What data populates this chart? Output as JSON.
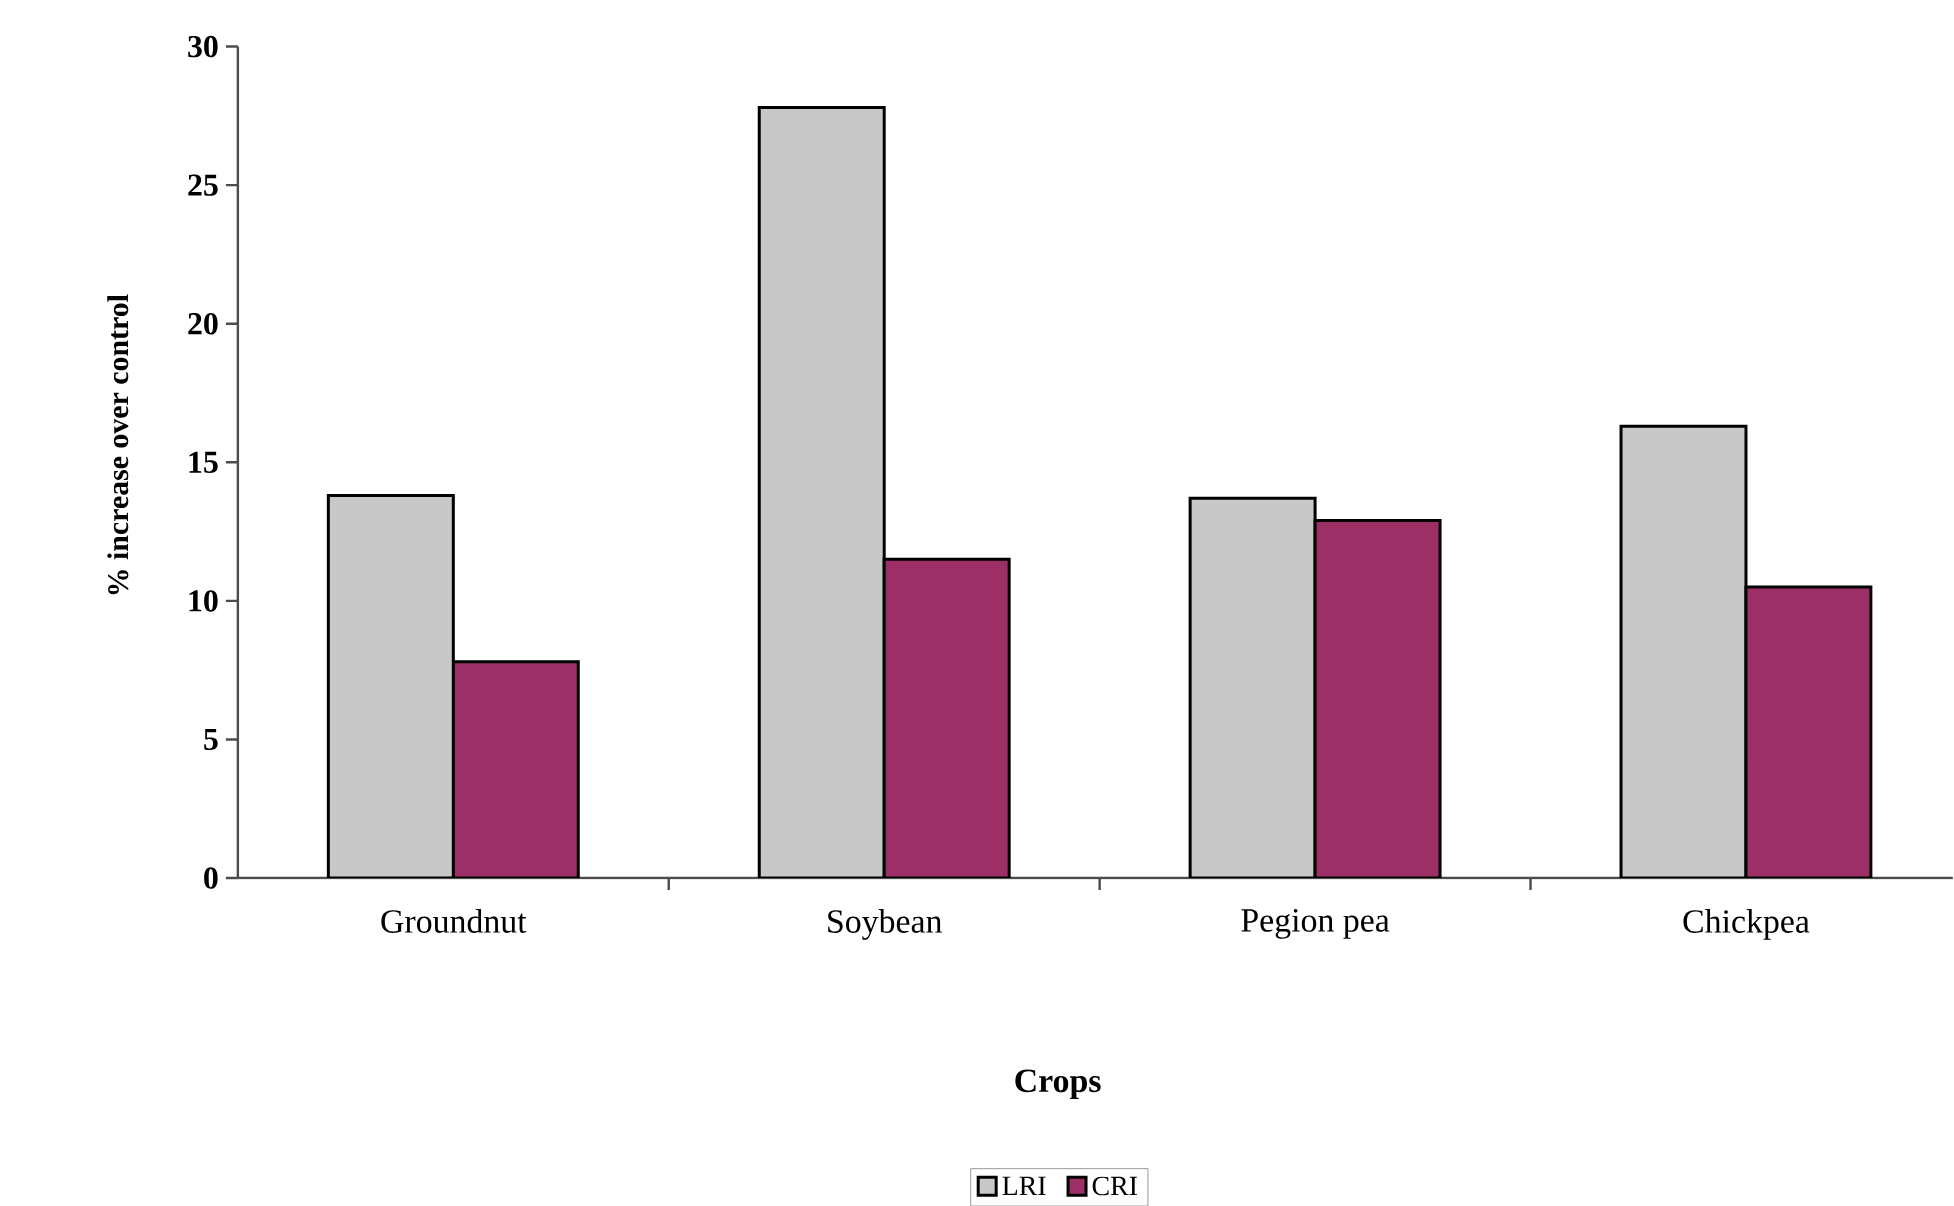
{
  "chart_data": {
    "type": "bar",
    "xlabel": "Crops",
    "ylabel": "% increase over control",
    "categories": [
      "Groundnut",
      "Soybean",
      "Pegion pea",
      "Chickpea"
    ],
    "series": [
      {
        "name": "LRI",
        "color": "#c8c8c8",
        "values": [
          13.8,
          27.8,
          13.7,
          16.3
        ]
      },
      {
        "name": "CRI",
        "color": "#9b2f66",
        "values": [
          7.8,
          11.5,
          12.9,
          10.5
        ]
      }
    ],
    "ylim": [
      0,
      30
    ],
    "yticks": [
      0,
      5,
      10,
      15,
      20,
      25,
      30
    ],
    "grid": false,
    "legend": "bottom"
  }
}
